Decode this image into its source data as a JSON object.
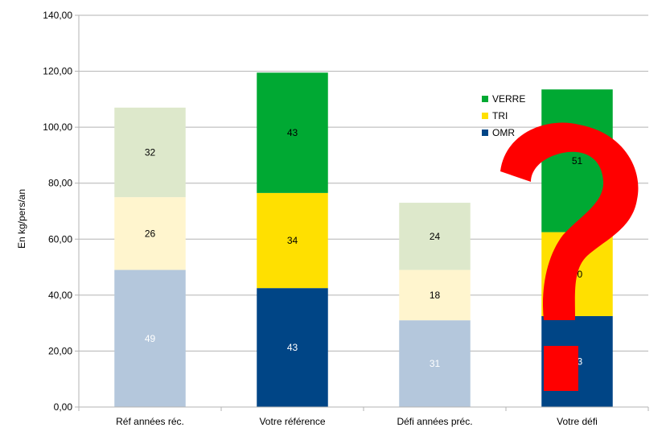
{
  "chart_data": {
    "type": "bar",
    "stacked": true,
    "title": "",
    "xlabel": "",
    "ylabel": "En kg/pers/an",
    "ylim": [
      0,
      140
    ],
    "yticks": [
      "0,00",
      "20,00",
      "40,00",
      "60,00",
      "80,00",
      "100,00",
      "120,00",
      "140,00"
    ],
    "grid": true,
    "legend_position": "top-right",
    "categories": [
      "Réf années réc.",
      "Votre référence",
      "Défi années préc.",
      "Votre défi"
    ],
    "series": [
      {
        "name": "OMR",
        "values": [
          49,
          42.5,
          31,
          32.5
        ],
        "labels": [
          "49",
          "43",
          "31",
          "33"
        ],
        "colors": [
          "#b4c7dc",
          "#004586",
          "#b4c7dc",
          "#004586"
        ],
        "label_colors": [
          "#ffffff",
          "#ffffff",
          "#ffffff",
          "#ffffff"
        ]
      },
      {
        "name": "TRI",
        "values": [
          26,
          34,
          18,
          30
        ],
        "labels": [
          "26",
          "34",
          "18",
          "30"
        ],
        "colors": [
          "#fff5ce",
          "#ffe000",
          "#fff5ce",
          "#ffe000"
        ],
        "label_colors": [
          "#000000",
          "#000000",
          "#000000",
          "#000000"
        ]
      },
      {
        "name": "VERRE",
        "values": [
          32,
          43,
          24,
          51
        ],
        "labels": [
          "32",
          "43",
          "24",
          "51"
        ],
        "colors": [
          "#dde8cb",
          "#00a933",
          "#dde8cb",
          "#00a933"
        ],
        "label_colors": [
          "#000000",
          "#000000",
          "#000000",
          "#000000"
        ]
      }
    ],
    "legend": [
      {
        "name": "VERRE",
        "color": "#00a933"
      },
      {
        "name": "TRI",
        "color": "#ffe000"
      },
      {
        "name": "OMR",
        "color": "#004586"
      }
    ],
    "overlay": {
      "glyph": "?",
      "color": "#ff0000"
    }
  }
}
